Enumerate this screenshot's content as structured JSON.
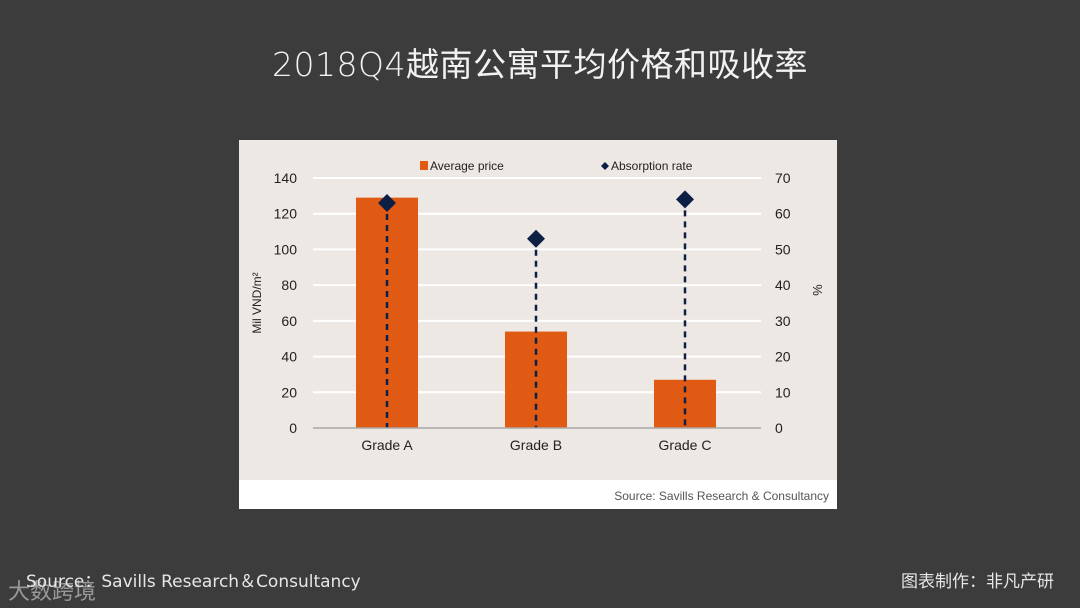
{
  "title": "2018Q4越南公寓平均价格和吸收率",
  "footer": {
    "source": "Source：Savills Research＆Consultancy",
    "credit": "图表制作：非凡产研",
    "watermark": "大数跨境"
  },
  "chart_source": "Source: Savills Research & Consultancy",
  "colors": {
    "bar": "#e05a14",
    "marker": "#0d1f45",
    "plot_bg": "#ede8e3",
    "page_bg": "#3c3c3c"
  },
  "chart_data": {
    "type": "bar",
    "title": "2018Q4越南公寓平均价格和吸收率",
    "categories": [
      "Grade A",
      "Grade B",
      "Grade C"
    ],
    "series": [
      {
        "name": "Average price",
        "type": "bar",
        "axis": "left",
        "values": [
          129,
          54,
          27
        ]
      },
      {
        "name": "Absorption rate",
        "type": "scatter",
        "marker": "diamond",
        "axis": "right",
        "values": [
          63,
          53,
          64
        ]
      }
    ],
    "ylabel": "Mil VND/m²",
    "ylabel_right": "%",
    "ylim": [
      0,
      140
    ],
    "ylim_right": [
      0,
      70
    ],
    "yticks": [
      0,
      20,
      40,
      60,
      80,
      100,
      120,
      140
    ],
    "yticks_right": [
      0,
      10,
      20,
      30,
      40,
      50,
      60,
      70
    ],
    "grid": true,
    "legend_position": "top",
    "legend": [
      "Average price",
      "Absorption rate"
    ],
    "source": "Source: Savills Research & Consultancy"
  }
}
